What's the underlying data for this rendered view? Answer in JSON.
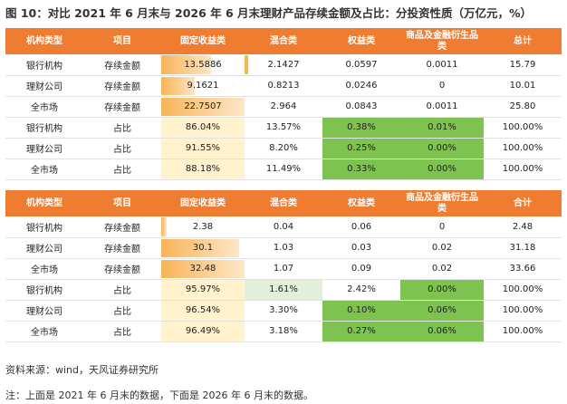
{
  "title": "图 10：对比 2021 年 6 月末与 2026 年 6 月末理财产品存续金额及占比：分投资性质（万亿元，%）",
  "headers": [
    "机构类型",
    "项目",
    "固定收益类",
    "混合类",
    "权益类",
    "商品及金融衍生品类",
    "总计"
  ],
  "headers2": [
    "机构类型",
    "项目",
    "固定收益类",
    "混合类",
    "权益类",
    "商品及金融衍生品类",
    "合计"
  ],
  "colors": {
    "header": "#ee7d31",
    "green": "#7ec34f",
    "palegreen": "#e2efd9",
    "yellow_light": "#fff2cc",
    "orange_bar": "#f8b458"
  },
  "table1": [
    {
      "inst": "银行机构",
      "item": "存续金额",
      "fixed": "13.5886",
      "fixed_level": 0.6,
      "mixed": "2.1427",
      "mixed_level": 0.09,
      "equity": "0.0597",
      "comm": "0.0011",
      "total": "15.79"
    },
    {
      "inst": "理财公司",
      "item": "存续金额",
      "fixed": "9.1621",
      "fixed_level": 0.4,
      "mixed": "0.8213",
      "mixed_level": 0,
      "equity": "0.0246",
      "comm": "0",
      "total": "10.01"
    },
    {
      "inst": "全市场",
      "item": "存续金额",
      "fixed": "22.7507",
      "fixed_level": 1.0,
      "mixed": "2.964",
      "mixed_level": 0,
      "equity": "0.0843",
      "comm": "0.0011",
      "total": "25.80"
    },
    {
      "inst": "银行机构",
      "item": "占比",
      "fixed": "86.04%",
      "mixed": "13.57%",
      "equity": "0.38%",
      "comm": "0.01%",
      "total": "100.00%"
    },
    {
      "inst": "理财公司",
      "item": "占比",
      "fixed": "91.55%",
      "mixed": "8.20%",
      "equity": "0.25%",
      "comm": "0.00%",
      "total": "100.00%"
    },
    {
      "inst": "全市场",
      "item": "占比",
      "fixed": "88.18%",
      "mixed": "11.49%",
      "equity": "0.33%",
      "comm": "0.00%",
      "total": "100.00%"
    }
  ],
  "table2": [
    {
      "inst": "银行机构",
      "item": "存续金额",
      "fixed": "2.38",
      "fixed_level": 0.07,
      "mixed": "0.04",
      "equity": "0.06",
      "comm": "0",
      "total": "2.48"
    },
    {
      "inst": "理财公司",
      "item": "存续金额",
      "fixed": "30.1",
      "fixed_level": 0.93,
      "mixed": "1.03",
      "equity": "0.03",
      "comm": "0.02",
      "total": "31.18"
    },
    {
      "inst": "全市场",
      "item": "存续金额",
      "fixed": "32.48",
      "fixed_level": 1.0,
      "mixed": "1.07",
      "equity": "0.09",
      "comm": "0.02",
      "total": "33.66"
    },
    {
      "inst": "银行机构",
      "item": "占比",
      "fixed": "95.97%",
      "mixed": "1.61%",
      "equity": "2.42%",
      "comm": "0.00%",
      "total": "100.00%"
    },
    {
      "inst": "理财公司",
      "item": "占比",
      "fixed": "96.54%",
      "mixed": "3.30%",
      "equity": "0.10%",
      "comm": "0.06%",
      "total": "100.00%"
    },
    {
      "inst": "全市场",
      "item": "占比",
      "fixed": "96.49%",
      "mixed": "3.18%",
      "equity": "0.27%",
      "comm": "0.06%",
      "total": "100.00%"
    }
  ],
  "source": "资料来源：wind，天风证券研究所",
  "note": "注：上面是 2021 年 6 月末的数据，下面是 2026 年 6 月末的数据。"
}
